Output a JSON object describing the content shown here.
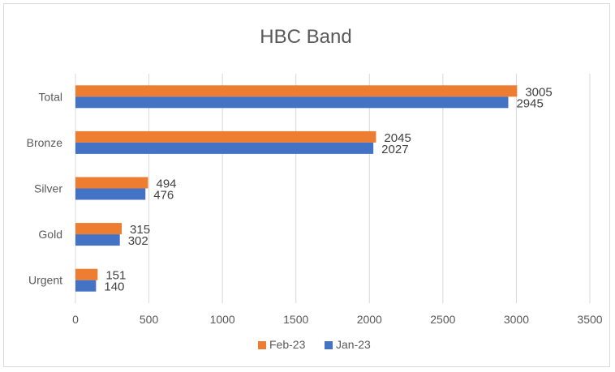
{
  "chart_data": {
    "type": "bar",
    "orientation": "horizontal",
    "title": "HBC Band",
    "categories": [
      "Total",
      "Bronze",
      "Silver",
      "Gold",
      "Urgent"
    ],
    "series": [
      {
        "name": "Feb-23",
        "values": [
          3005,
          2045,
          494,
          315,
          151
        ],
        "color": "#ED7D31"
      },
      {
        "name": "Jan-23",
        "values": [
          2945,
          2027,
          476,
          302,
          140
        ],
        "color": "#4472C4"
      }
    ],
    "xlabel": "",
    "ylabel": "",
    "xlim": [
      0,
      3500
    ],
    "x_ticks": [
      "0",
      "500",
      "1000",
      "1500",
      "2000",
      "2500",
      "3000",
      "3500"
    ],
    "grid": true,
    "data_labels": true,
    "legend_position": "bottom"
  }
}
